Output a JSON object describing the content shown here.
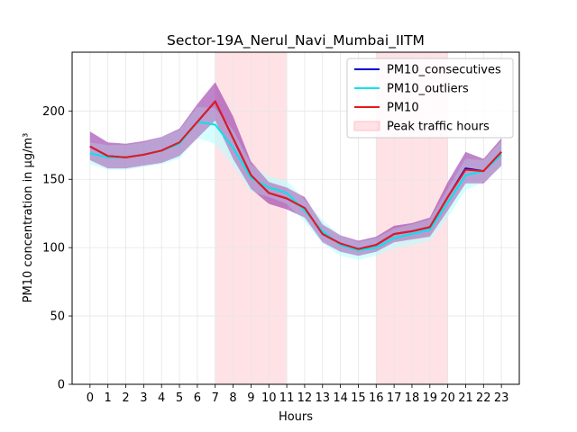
{
  "chart_data": {
    "type": "line",
    "title": "Sector-19A_Nerul_Navi_Mumbai_IITM",
    "xlabel": "Hours",
    "ylabel": "PM10 concentration in μg/m³",
    "x": [
      0,
      1,
      2,
      3,
      4,
      5,
      6,
      7,
      8,
      9,
      10,
      11,
      12,
      13,
      14,
      15,
      16,
      17,
      18,
      19,
      20,
      21,
      22,
      23
    ],
    "xlim": [
      -1,
      24
    ],
    "ylim": [
      0,
      243
    ],
    "yticks": [
      0,
      50,
      100,
      150,
      200
    ],
    "grid": true,
    "legend_position": "top-right",
    "series": [
      {
        "name": "PM10_consecutives",
        "color": "#0000cd",
        "band_color": "#6a5acd",
        "values": [
          174,
          167,
          166,
          168,
          171,
          177,
          192,
          207,
          180,
          153,
          140,
          136,
          129,
          110,
          103,
          99,
          102,
          110,
          112,
          115,
          137,
          158,
          156,
          170
        ],
        "lower": [
          164,
          158,
          158,
          160,
          162,
          167,
          180,
          193,
          165,
          143,
          132,
          128,
          122,
          104,
          97,
          94,
          97,
          104,
          106,
          108,
          127,
          147,
          147,
          160
        ],
        "upper": [
          185,
          177,
          176,
          178,
          181,
          187,
          205,
          221,
          196,
          163,
          148,
          144,
          137,
          117,
          109,
          105,
          108,
          116,
          118,
          122,
          148,
          170,
          165,
          180
        ]
      },
      {
        "name": "PM10_outliers",
        "color": "#00e5ee",
        "band_color": "#b3ffff",
        "values": [
          169,
          166,
          166,
          168,
          171,
          176,
          192,
          190,
          173,
          151,
          144,
          140,
          127,
          112,
          102,
          98,
          100,
          107,
          110,
          113,
          133,
          153,
          156,
          168
        ],
        "lower": [
          161,
          157,
          157,
          159,
          161,
          165,
          180,
          176,
          160,
          141,
          137,
          132,
          119,
          103,
          94,
          91,
          94,
          100,
          102,
          105,
          122,
          142,
          148,
          159
        ],
        "upper": [
          177,
          175,
          175,
          177,
          181,
          186,
          203,
          202,
          186,
          161,
          152,
          149,
          135,
          120,
          109,
          104,
          107,
          114,
          117,
          121,
          143,
          165,
          164,
          178
        ]
      },
      {
        "name": "PM10",
        "color": "#e31a1c",
        "band_color": "#c71585",
        "values": [
          174,
          167,
          166,
          168,
          171,
          177,
          192,
          207,
          180,
          153,
          140,
          136,
          129,
          110,
          103,
          99,
          102,
          110,
          112,
          115,
          137,
          157,
          156,
          170
        ],
        "lower": [
          164,
          158,
          158,
          160,
          162,
          167,
          180,
          193,
          165,
          143,
          132,
          128,
          122,
          104,
          97,
          94,
          97,
          104,
          106,
          108,
          127,
          147,
          147,
          160
        ],
        "upper": [
          185,
          177,
          176,
          178,
          181,
          187,
          205,
          221,
          196,
          163,
          148,
          144,
          137,
          117,
          109,
          105,
          108,
          116,
          118,
          122,
          148,
          170,
          165,
          180
        ]
      }
    ],
    "shaded_regions": [
      {
        "name": "Peak traffic hours",
        "x_start": 7,
        "x_end": 11,
        "color": "#ffb6c1"
      },
      {
        "x_start": 16,
        "x_end": 20,
        "color": "#ffb6c1"
      }
    ]
  }
}
